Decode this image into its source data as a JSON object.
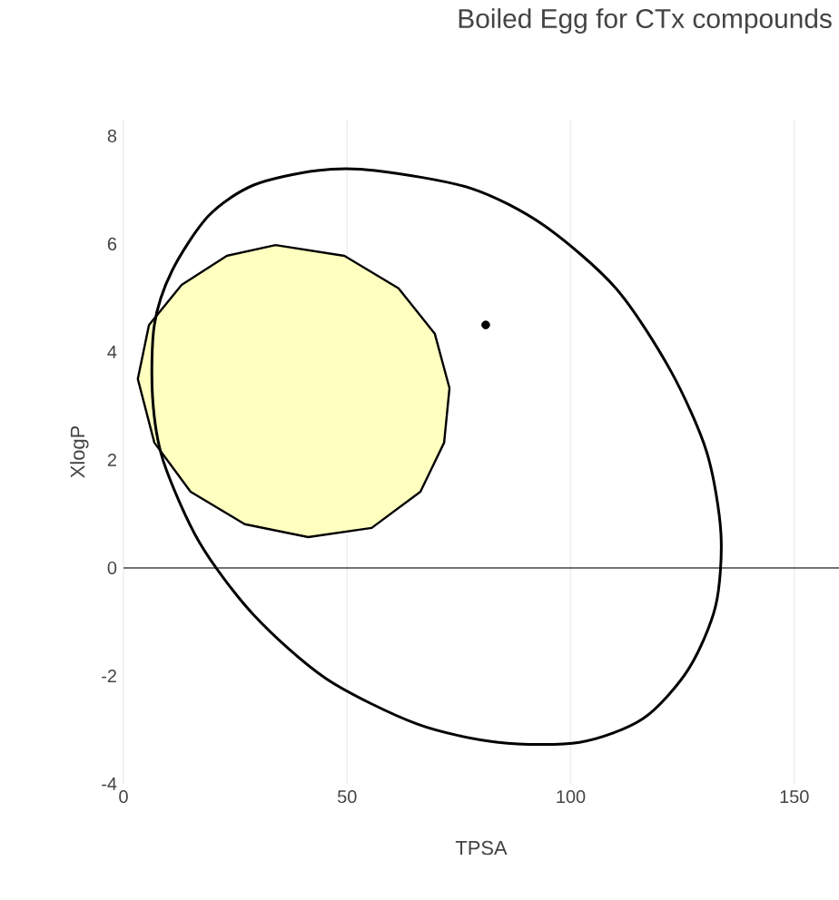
{
  "chart_data": {
    "type": "line",
    "title": "Boiled Egg for CTx compounds",
    "xlabel": "TPSA",
    "ylabel": "XlogP",
    "xlim": [
      0,
      160
    ],
    "ylim": [
      -4,
      8.3
    ],
    "xticks": [
      0,
      50,
      100,
      150
    ],
    "yticks": [
      -4,
      -2,
      0,
      2,
      4,
      6,
      8
    ],
    "grid": "x",
    "ref_lines": [
      {
        "axis": "y",
        "value": 0,
        "color": "#444444"
      }
    ],
    "series": [
      {
        "type": "area",
        "color": "#ffffc0",
        "x": [
          34.0,
          49.4,
          61.5,
          69.6,
          72.9,
          71.7,
          66.4,
          55.5,
          41.3,
          27.1,
          15.0,
          6.9,
          3.2,
          5.7,
          13.0,
          23.1,
          34.0
        ],
        "values": [
          5.98,
          5.78,
          5.18,
          4.34,
          3.33,
          2.32,
          1.41,
          0.74,
          0.57,
          0.81,
          1.41,
          2.32,
          3.5,
          4.5,
          5.24,
          5.78,
          5.98
        ]
      },
      {
        "type": "scatter",
        "color": "#000000",
        "x": [
          81
        ],
        "values": [
          4.5
        ]
      }
    ]
  }
}
